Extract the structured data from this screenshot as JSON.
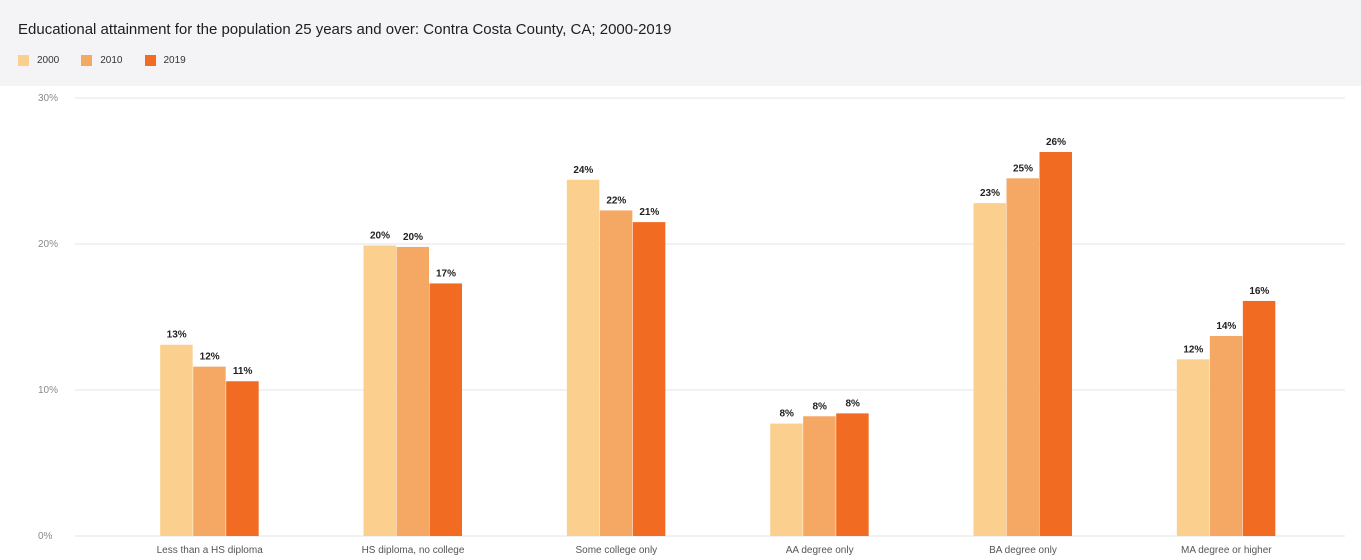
{
  "chart_data": {
    "type": "bar",
    "title": "Educational attainment for the population 25 years and over: Contra Costa County, CA; 2000-2019",
    "categories": [
      "Less than a HS diploma",
      "HS diploma, no college",
      "Some college only",
      "AA degree only",
      "BA degree only",
      "MA degree or higher"
    ],
    "series": [
      {
        "name": "2000",
        "color": "#fbd08f",
        "values": [
          13.1,
          19.9,
          24.4,
          7.7,
          22.8,
          12.1
        ],
        "labels": [
          "13%",
          "20%",
          "24%",
          "8%",
          "23%",
          "12%"
        ]
      },
      {
        "name": "2010",
        "color": "#f5a764",
        "values": [
          11.6,
          19.8,
          22.3,
          8.2,
          24.5,
          13.7
        ],
        "labels": [
          "12%",
          "20%",
          "22%",
          "8%",
          "25%",
          "14%"
        ]
      },
      {
        "name": "2019",
        "color": "#f26b22",
        "values": [
          10.6,
          17.3,
          21.5,
          8.4,
          26.3,
          16.1
        ],
        "labels": [
          "11%",
          "17%",
          "21%",
          "8%",
          "26%",
          "16%"
        ]
      }
    ],
    "yticks": [
      "0%",
      "10%",
      "20%",
      "30%"
    ],
    "ylim": [
      0,
      30
    ],
    "grid": true,
    "legend_position": "top-left"
  }
}
